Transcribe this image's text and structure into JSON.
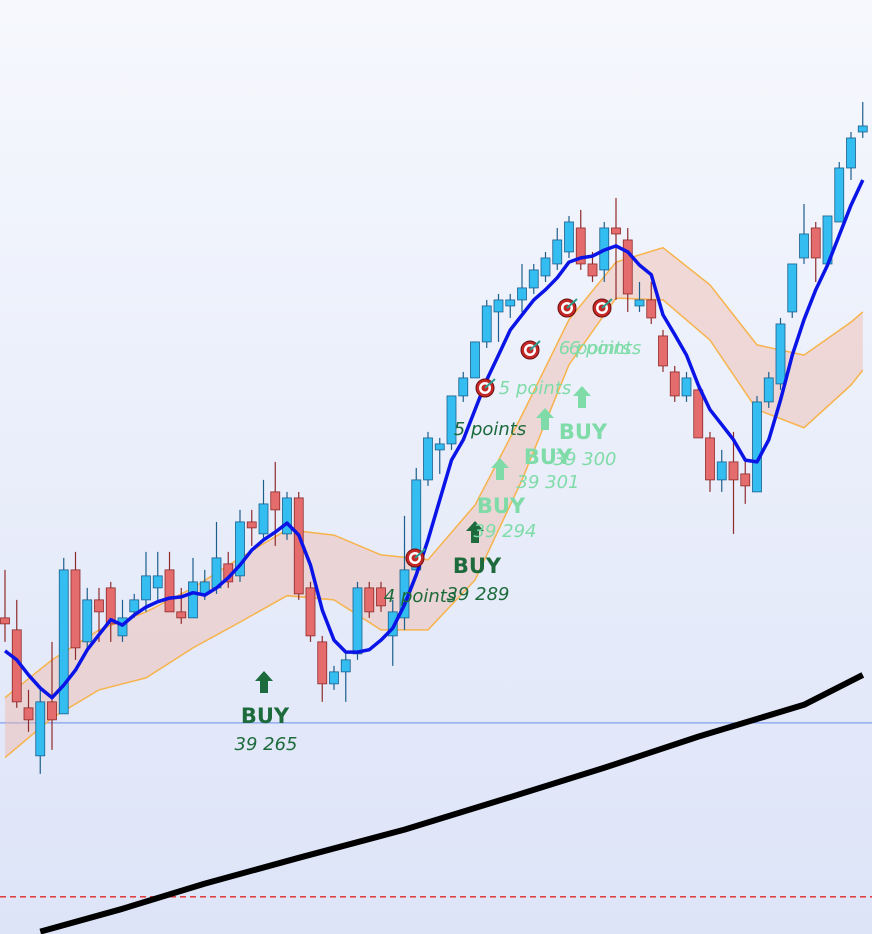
{
  "chart_data": {
    "type": "candlestick",
    "ylim": [
      39219.3,
      39375
    ],
    "up_color": "#33bdf0",
    "down_color": "#e46c6c",
    "open": [
      39272,
      39270,
      39257,
      39249,
      39258,
      39256,
      39280,
      39268,
      39275,
      39277,
      39269,
      39273,
      39275,
      39277,
      39280,
      39273,
      39272,
      39276,
      39277,
      39281,
      39279,
      39288,
      39286,
      39293,
      39286,
      39292,
      39277,
      39268,
      39261,
      39263,
      39266,
      39277,
      39277,
      39269,
      39272,
      39280,
      39295,
      39300,
      39301,
      39309,
      39312,
      39318,
      39323,
      39324,
      39325,
      39327,
      39329,
      39331,
      39333,
      39337,
      39331,
      39330,
      39337,
      39335,
      39324,
      39325,
      39319,
      39313,
      39309,
      39310,
      39302,
      39295,
      39298,
      39296,
      39293,
      39308,
      39311,
      39323,
      39332,
      39337,
      39331,
      39338,
      39347,
      39353
    ],
    "high": [
      39280,
      39275,
      39260,
      39260,
      39268,
      39282,
      39283,
      39277,
      39277,
      39278,
      39275,
      39276,
      39283,
      39283,
      39283,
      39277,
      39282,
      39280,
      39288,
      39283,
      39290,
      39290,
      39295,
      39298,
      39293,
      39293,
      39278,
      39269,
      39264,
      39266,
      39278,
      39278,
      39278,
      39275,
      39289,
      39297,
      39303,
      39302,
      39309,
      39313,
      39318,
      39325,
      39326,
      39326,
      39331,
      39331,
      39333,
      39337,
      39339,
      39340,
      39333,
      39338,
      39342,
      39337,
      39328,
      39328,
      39320,
      39314,
      39313,
      39311,
      39303,
      39300,
      39303,
      39298,
      39309,
      39313,
      39322,
      39331,
      39341,
      39338,
      39339,
      39348,
      39353,
      39358
    ],
    "low": [
      39268,
      39257,
      39253,
      39246,
      39250,
      39256,
      39265,
      39267,
      39268,
      39268,
      39268,
      39272,
      39273,
      39275,
      39273,
      39271,
      39272,
      39275,
      39276,
      39277,
      39278,
      39284,
      39285,
      39284,
      39285,
      39275,
      39268,
      39258,
      39260,
      39258,
      39265,
      39272,
      39273,
      39264,
      39270,
      39279,
      39294,
      39296,
      39300,
      39308,
      39312,
      39317,
      39318,
      39322,
      39323,
      39326,
      39328,
      39330,
      39332,
      39330,
      39328,
      39328,
      39325,
      39323,
      39323,
      39321,
      39313,
      39308,
      39308,
      39302,
      39293,
      39293,
      39286,
      39291,
      39293,
      39307,
      39310,
      39322,
      39331,
      39328,
      39331,
      39338,
      39345,
      39352
    ],
    "close": [
      39271,
      39258,
      39255,
      39258,
      39255,
      39280,
      39267,
      39275,
      39273,
      39271,
      39272,
      39275,
      39279,
      39279,
      39273,
      39272,
      39278,
      39278,
      39282,
      39278,
      39288,
      39287,
      39291,
      39290,
      39292,
      39276,
      39269,
      39261,
      39263,
      39265,
      39277,
      39273,
      39274,
      39273,
      39280,
      39295,
      39302,
      39301,
      39309,
      39312,
      39318,
      39324,
      39325,
      39325,
      39327,
      39330,
      39332,
      39335,
      39338,
      39331,
      39329,
      39337,
      39336,
      39326,
      39325,
      39322,
      39314,
      39309,
      39312,
      39302,
      39295,
      39298,
      39295,
      39294,
      39308,
      39312,
      39321,
      39331,
      39336,
      39332,
      39339,
      39347,
      39352,
      39354
    ],
    "moving_average": {
      "color": "#0a14e6",
      "values": [
        39266.5,
        39265,
        39262.5,
        39260.3,
        39258.7,
        39260.8,
        39263.3,
        39266.7,
        39269.2,
        39271.7,
        39270.8,
        39272.5,
        39273.8,
        39274.7,
        39275.3,
        39275.5,
        39276.2,
        39275.8,
        39277,
        39278.7,
        39280.8,
        39283.3,
        39285,
        39286.3,
        39287.8,
        39285.8,
        39280.8,
        39273.3,
        39268.3,
        39266.3,
        39266.3,
        39266.7,
        39268.3,
        39270.3,
        39274.2,
        39279.2,
        39285,
        39291.7,
        39298.3,
        39301.7,
        39306.7,
        39311.7,
        39315.8,
        39320,
        39322.5,
        39325,
        39326.7,
        39328.7,
        39331.3,
        39332,
        39332.3,
        39333.3,
        39334,
        39333,
        39330.8,
        39329.2,
        39322.5,
        39319.2,
        39315.8,
        39310.8,
        39306.7,
        39304.2,
        39301.7,
        39298.3,
        39298,
        39301.7,
        39308.3,
        39315.8,
        39321.7,
        39326.7,
        39330.8,
        39335.8,
        39340.8,
        39345
      ]
    },
    "band": {
      "color": "#f7b34c",
      "fill": "#f0b8a8",
      "x": [
        0,
        4,
        8,
        12,
        16,
        20,
        24,
        28,
        32,
        36,
        40,
        44,
        48,
        52,
        56,
        60,
        64,
        68,
        72,
        73
      ],
      "upper": [
        39258.7,
        39265,
        39270,
        39273,
        39277,
        39282,
        39286.7,
        39285.8,
        39282.5,
        39281.7,
        39290.8,
        39305.8,
        39321.7,
        39331.3,
        39333.7,
        39327.5,
        39317.5,
        39315.8,
        39321.3,
        39323
      ],
      "lower": [
        39248.7,
        39255.3,
        39260,
        39262,
        39267,
        39271.3,
        39275.7,
        39275,
        39270,
        39270,
        39278.3,
        39295,
        39314.2,
        39325.3,
        39325,
        39318.3,
        39306.7,
        39303.7,
        39310.8,
        39313.3
      ]
    },
    "trend": {
      "color": "#000000",
      "x": [
        3,
        10,
        17,
        25,
        34,
        42,
        51,
        59,
        68,
        73
      ],
      "values": [
        39219.7,
        39223.5,
        39227.7,
        39232,
        39236.7,
        39241.5,
        39247,
        39252.2,
        39257.5,
        39262.5
      ]
    },
    "levels": [
      {
        "value": 39254.5,
        "color": "#7f9ff0",
        "style": "solid"
      },
      {
        "value": 39225.5,
        "color": "#e02828",
        "style": "dashed"
      }
    ],
    "signals": [
      {
        "label": "BUY",
        "price": "39 265",
        "color": "#1d6b3c"
      },
      {
        "label": "BUY",
        "price": "39 289",
        "color": "#1d6b3c"
      },
      {
        "label": "BUY",
        "price": "39 294",
        "color": "#7fdca8"
      },
      {
        "label": "BUY",
        "price": "39 301",
        "color": "#7fdca8"
      },
      {
        "label": "BUY",
        "price": "39 300",
        "color": "#7fdca8"
      }
    ],
    "targets": [
      {
        "label": "4  points",
        "color": "#1d6b3c"
      },
      {
        "label": "5  points",
        "color": "#1d6b3c"
      },
      {
        "label": "5  points",
        "color": "#7fdca8"
      },
      {
        "label": "6  points",
        "color": "#7fdca8"
      },
      {
        "label": "6  points",
        "color": "#7fdca8"
      }
    ]
  }
}
